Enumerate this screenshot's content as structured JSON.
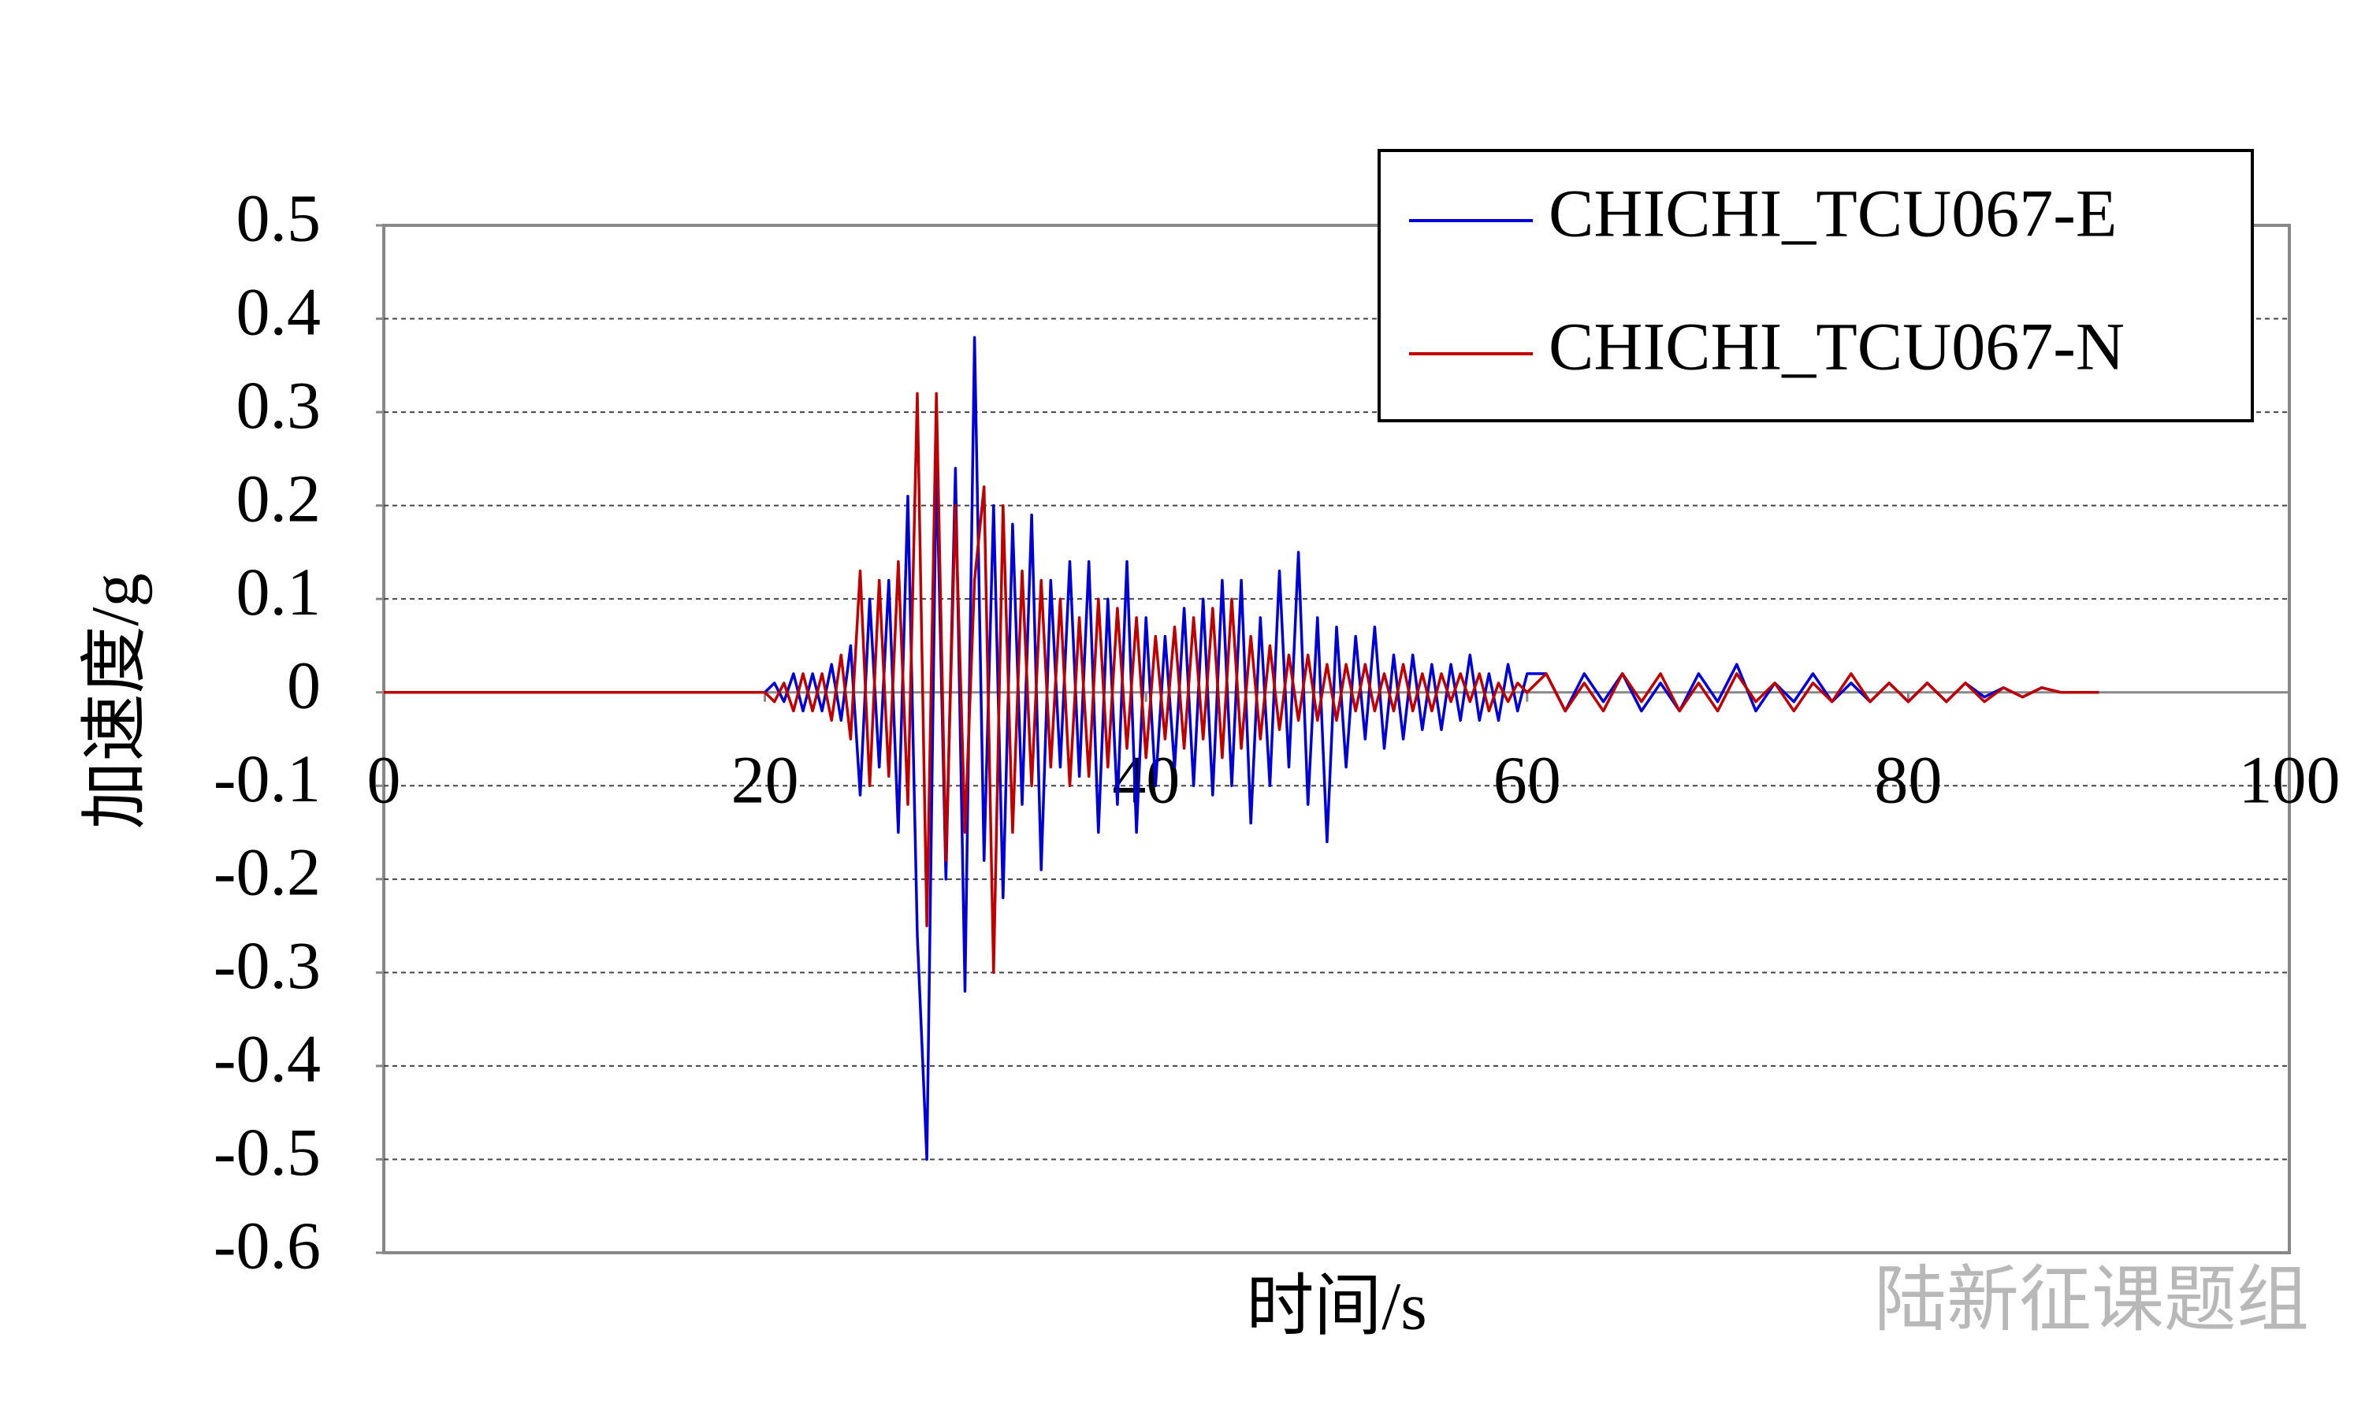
{
  "chart_data": {
    "type": "line",
    "x_label": "时间/s",
    "y_label": "加速度/g",
    "watermark": "陆新征课题组",
    "xlim": [
      0,
      100
    ],
    "xticks": [
      0,
      20,
      40,
      60,
      80,
      100
    ],
    "ylim": [
      -0.6,
      0.5
    ],
    "yticks": [
      -0.6,
      -0.5,
      -0.4,
      -0.3,
      -0.2,
      -0.1,
      0,
      0.1,
      0.2,
      0.3,
      0.4,
      0.5
    ],
    "grid": true,
    "legend": "upper right",
    "x": [
      0,
      20,
      20.5,
      21,
      21.5,
      22,
      22.5,
      23,
      23.5,
      24,
      24.5,
      25,
      25.5,
      26,
      26.5,
      27,
      27.5,
      28,
      28.5,
      29,
      29.5,
      30,
      30.5,
      31,
      31.5,
      32,
      32.5,
      33,
      33.5,
      34,
      34.5,
      35,
      35.5,
      36,
      36.5,
      37,
      37.5,
      38,
      38.5,
      39,
      39.5,
      40,
      40.5,
      41,
      41.5,
      42,
      42.5,
      43,
      43.5,
      44,
      44.5,
      45,
      45.5,
      46,
      46.5,
      47,
      47.5,
      48,
      48.5,
      49,
      49.5,
      50,
      50.5,
      51,
      51.5,
      52,
      52.5,
      53,
      53.5,
      54,
      54.5,
      55,
      55.5,
      56,
      56.5,
      57,
      57.5,
      58,
      58.5,
      59,
      59.5,
      60,
      61,
      62,
      63,
      64,
      65,
      66,
      67,
      68,
      69,
      70,
      71,
      72,
      73,
      74,
      75,
      76,
      77,
      78,
      79,
      80,
      81,
      82,
      83,
      84,
      85,
      86,
      87,
      88,
      89,
      90
    ],
    "series": [
      {
        "name": "CHICHI_TCU067-E",
        "color": "#0000d8",
        "values": [
          0,
          0,
          0.01,
          -0.01,
          0.02,
          -0.02,
          0.02,
          -0.02,
          0.03,
          -0.03,
          0.05,
          -0.11,
          0.1,
          -0.08,
          0.12,
          -0.15,
          0.21,
          -0.26,
          -0.5,
          0.25,
          -0.2,
          0.24,
          -0.32,
          0.38,
          -0.18,
          0.2,
          -0.22,
          0.18,
          -0.12,
          0.19,
          -0.19,
          0.12,
          -0.08,
          0.14,
          -0.09,
          0.14,
          -0.15,
          0.1,
          -0.12,
          0.14,
          -0.15,
          0.08,
          -0.1,
          0.06,
          -0.08,
          0.09,
          -0.1,
          0.1,
          -0.11,
          0.12,
          -0.1,
          0.12,
          -0.14,
          0.08,
          -0.1,
          0.13,
          -0.08,
          0.15,
          -0.12,
          0.08,
          -0.16,
          0.07,
          -0.08,
          0.06,
          -0.05,
          0.07,
          -0.06,
          0.04,
          -0.05,
          0.04,
          -0.04,
          0.03,
          -0.04,
          0.03,
          -0.03,
          0.04,
          -0.03,
          0.02,
          -0.03,
          0.03,
          -0.02,
          0.02,
          0.02,
          -0.02,
          0.02,
          -0.01,
          0.02,
          -0.02,
          0.01,
          -0.02,
          0.02,
          -0.01,
          0.03,
          -0.02,
          0.01,
          -0.01,
          0.02,
          -0.01,
          0.01,
          -0.01,
          0.01,
          -0.01,
          0.01,
          -0.01,
          0.01,
          -0.005,
          0.005,
          -0.005,
          0.005,
          0,
          0,
          0
        ]
      },
      {
        "name": "CHICHI_TCU067-N",
        "color": "#c00000",
        "values": [
          0,
          0,
          -0.01,
          0.01,
          -0.02,
          0.02,
          -0.02,
          0.02,
          -0.03,
          0.04,
          -0.05,
          0.13,
          -0.1,
          0.12,
          -0.09,
          0.14,
          -0.12,
          0.32,
          -0.25,
          0.32,
          -0.18,
          0.2,
          -0.15,
          0.12,
          0.22,
          -0.3,
          0.2,
          -0.15,
          0.13,
          -0.1,
          0.12,
          -0.08,
          0.1,
          -0.1,
          0.08,
          -0.09,
          0.1,
          -0.08,
          0.09,
          -0.06,
          0.08,
          -0.07,
          0.06,
          -0.05,
          0.07,
          -0.06,
          0.08,
          -0.05,
          0.09,
          -0.07,
          0.1,
          -0.06,
          0.06,
          -0.05,
          0.05,
          -0.04,
          0.04,
          -0.03,
          0.04,
          -0.03,
          0.03,
          -0.03,
          0.03,
          -0.02,
          0.03,
          -0.02,
          0.02,
          -0.02,
          0.03,
          -0.02,
          0.02,
          -0.02,
          0.02,
          -0.01,
          0.02,
          -0.01,
          0.02,
          -0.02,
          0.01,
          -0.01,
          0.01,
          0,
          0.02,
          -0.02,
          0.01,
          -0.02,
          0.02,
          -0.01,
          0.02,
          -0.02,
          0.01,
          -0.02,
          0.02,
          -0.01,
          0.01,
          -0.02,
          0.01,
          -0.01,
          0.02,
          -0.01,
          0.01,
          -0.01,
          0.01,
          -0.01,
          0.01,
          -0.01,
          0.005,
          -0.005,
          0.005,
          0,
          0,
          0
        ]
      }
    ]
  }
}
